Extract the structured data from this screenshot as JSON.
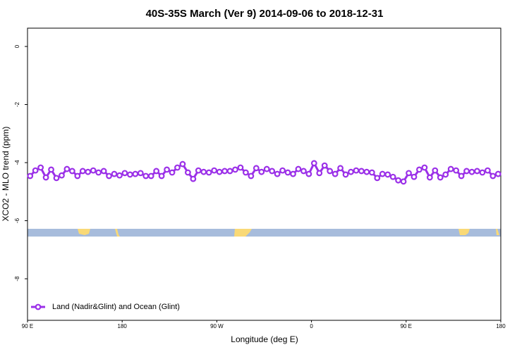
{
  "chart_data": {
    "type": "line",
    "title": "40S-35S March (Ver 9)   2014-09-06 to 2018-12-31",
    "x_label": "Longitude (deg E)",
    "y_label": "XCO2 - MLO trend (ppm)",
    "xlim": [
      90,
      540
    ],
    "ylim": [
      -9.43,
      0.63
    ],
    "xticks": [
      {
        "value": 90,
        "label": "90 E"
      },
      180,
      {
        "value": 270,
        "label": "90 W"
      },
      {
        "value": 360,
        "label": "0"
      },
      {
        "value": 450,
        "label": "90 E"
      },
      {
        "value": 540,
        "label": "180"
      }
    ],
    "yticks": [
      0,
      -2,
      -4,
      -6,
      -8
    ],
    "legend": "bottom-left",
    "series": [
      {
        "name": "Land (Nadir&Glint) and Ocean (Glint)",
        "color": "#9b30e8",
        "x": [
          92.5,
          97.5,
          102.5,
          107.5,
          112.5,
          117.5,
          122.5,
          127.5,
          132.5,
          137.5,
          142.5,
          147.5,
          152.5,
          157.5,
          162.5,
          167.5,
          172.5,
          177.5,
          182.5,
          187.5,
          192.5,
          197.5,
          202.5,
          207.5,
          212.5,
          217.5,
          222.5,
          227.5,
          232.5,
          237.5,
          242.5,
          247.5,
          252.5,
          257.5,
          262.5,
          267.5,
          272.5,
          277.5,
          282.5,
          287.5,
          292.5,
          297.5,
          302.5,
          307.5,
          312.5,
          317.5,
          322.5,
          327.5,
          332.5,
          337.5,
          342.5,
          347.5,
          352.5,
          357.5,
          362.5,
          367.5,
          372.5,
          377.5,
          382.5,
          387.5,
          392.5,
          397.5,
          402.5,
          407.5,
          412.5,
          417.5,
          422.5,
          427.5,
          432.5,
          437.5,
          442.5,
          447.5,
          452.5,
          457.5,
          462.5,
          467.5,
          472.5,
          477.5,
          482.5,
          487.5,
          492.5,
          497.5,
          502.5,
          507.5,
          512.5,
          517.5,
          522.5,
          527.5,
          532.5,
          537.5
        ],
        "values": [
          -4.46,
          -4.27,
          -4.17,
          -4.51,
          -4.24,
          -4.53,
          -4.44,
          -4.22,
          -4.29,
          -4.46,
          -4.29,
          -4.32,
          -4.27,
          -4.34,
          -4.29,
          -4.46,
          -4.39,
          -4.44,
          -4.36,
          -4.41,
          -4.39,
          -4.36,
          -4.46,
          -4.46,
          -4.29,
          -4.46,
          -4.24,
          -4.34,
          -4.17,
          -4.05,
          -4.34,
          -4.56,
          -4.27,
          -4.32,
          -4.34,
          -4.27,
          -4.32,
          -4.29,
          -4.29,
          -4.24,
          -4.17,
          -4.34,
          -4.46,
          -4.19,
          -4.32,
          -4.22,
          -4.29,
          -4.39,
          -4.27,
          -4.34,
          -4.39,
          -4.22,
          -4.29,
          -4.39,
          -4.02,
          -4.36,
          -4.1,
          -4.29,
          -4.39,
          -4.19,
          -4.41,
          -4.32,
          -4.27,
          -4.29,
          -4.32,
          -4.34,
          -4.53,
          -4.39,
          -4.41,
          -4.49,
          -4.61,
          -4.65,
          -4.36,
          -4.49,
          -4.24,
          -4.17,
          -4.51,
          -4.27,
          -4.51,
          -4.41,
          -4.22,
          -4.27,
          -4.46,
          -4.29,
          -4.32,
          -4.29,
          -4.34,
          -4.27,
          -4.46,
          -4.39
        ]
      }
    ]
  }
}
